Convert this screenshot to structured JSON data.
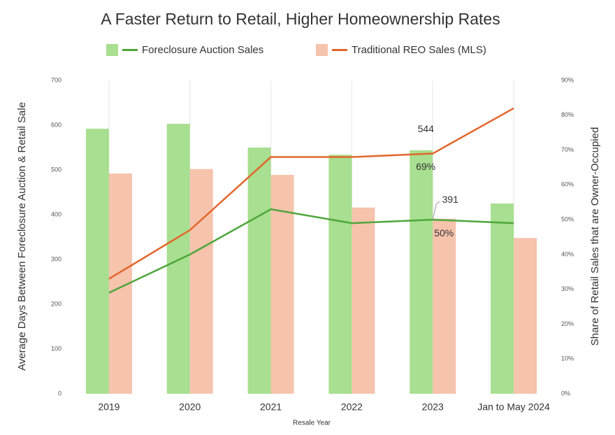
{
  "chart_data": {
    "type": "bar",
    "title": "A Faster Return to Retail, Higher Homeownership Rates",
    "x_label": "Resale Year",
    "y_label": "Average Days Between Foreclosure Auction & Retail Sale",
    "y2_label": "Share of Retail Sales that are Owner-Occupied",
    "categories": [
      "2019",
      "2020",
      "2021",
      "2022",
      "2023",
      "Jan to May 2024"
    ],
    "ylim": [
      0,
      700
    ],
    "yticks": [
      0,
      100,
      200,
      300,
      400,
      500,
      600,
      700
    ],
    "y2lim": [
      0,
      90
    ],
    "y2ticks": [
      {
        "value": 0,
        "label": "0%"
      },
      {
        "value": 10,
        "label": "10%"
      },
      {
        "value": 20,
        "label": "20%"
      },
      {
        "value": 30,
        "label": "30%"
      },
      {
        "value": 40,
        "label": "40%"
      },
      {
        "value": 50,
        "label": "50%"
      },
      {
        "value": 60,
        "label": "60%"
      },
      {
        "value": 70,
        "label": "70%"
      },
      {
        "value": 80,
        "label": "80%"
      },
      {
        "value": 90,
        "label": "90%"
      }
    ],
    "series": [
      {
        "name": "Foreclosure Auction Sales",
        "bar_color": "#a8df90",
        "line_color": "#4ea63a",
        "values": [
          592,
          603,
          550,
          534,
          544,
          425
        ],
        "share": [
          29,
          40,
          53,
          49,
          50,
          49
        ],
        "share_labels": [
          null,
          null,
          null,
          null,
          "50%",
          null
        ]
      },
      {
        "name": "Traditional REO Sales (MLS)",
        "bar_color": "#f6c3ad",
        "line_color": "#e2662c",
        "values": [
          492,
          502,
          489,
          416,
          391,
          348
        ],
        "share": [
          33,
          47,
          68,
          68,
          69,
          82
        ],
        "share_labels": [
          null,
          null,
          null,
          null,
          "69%",
          null
        ]
      }
    ]
  }
}
